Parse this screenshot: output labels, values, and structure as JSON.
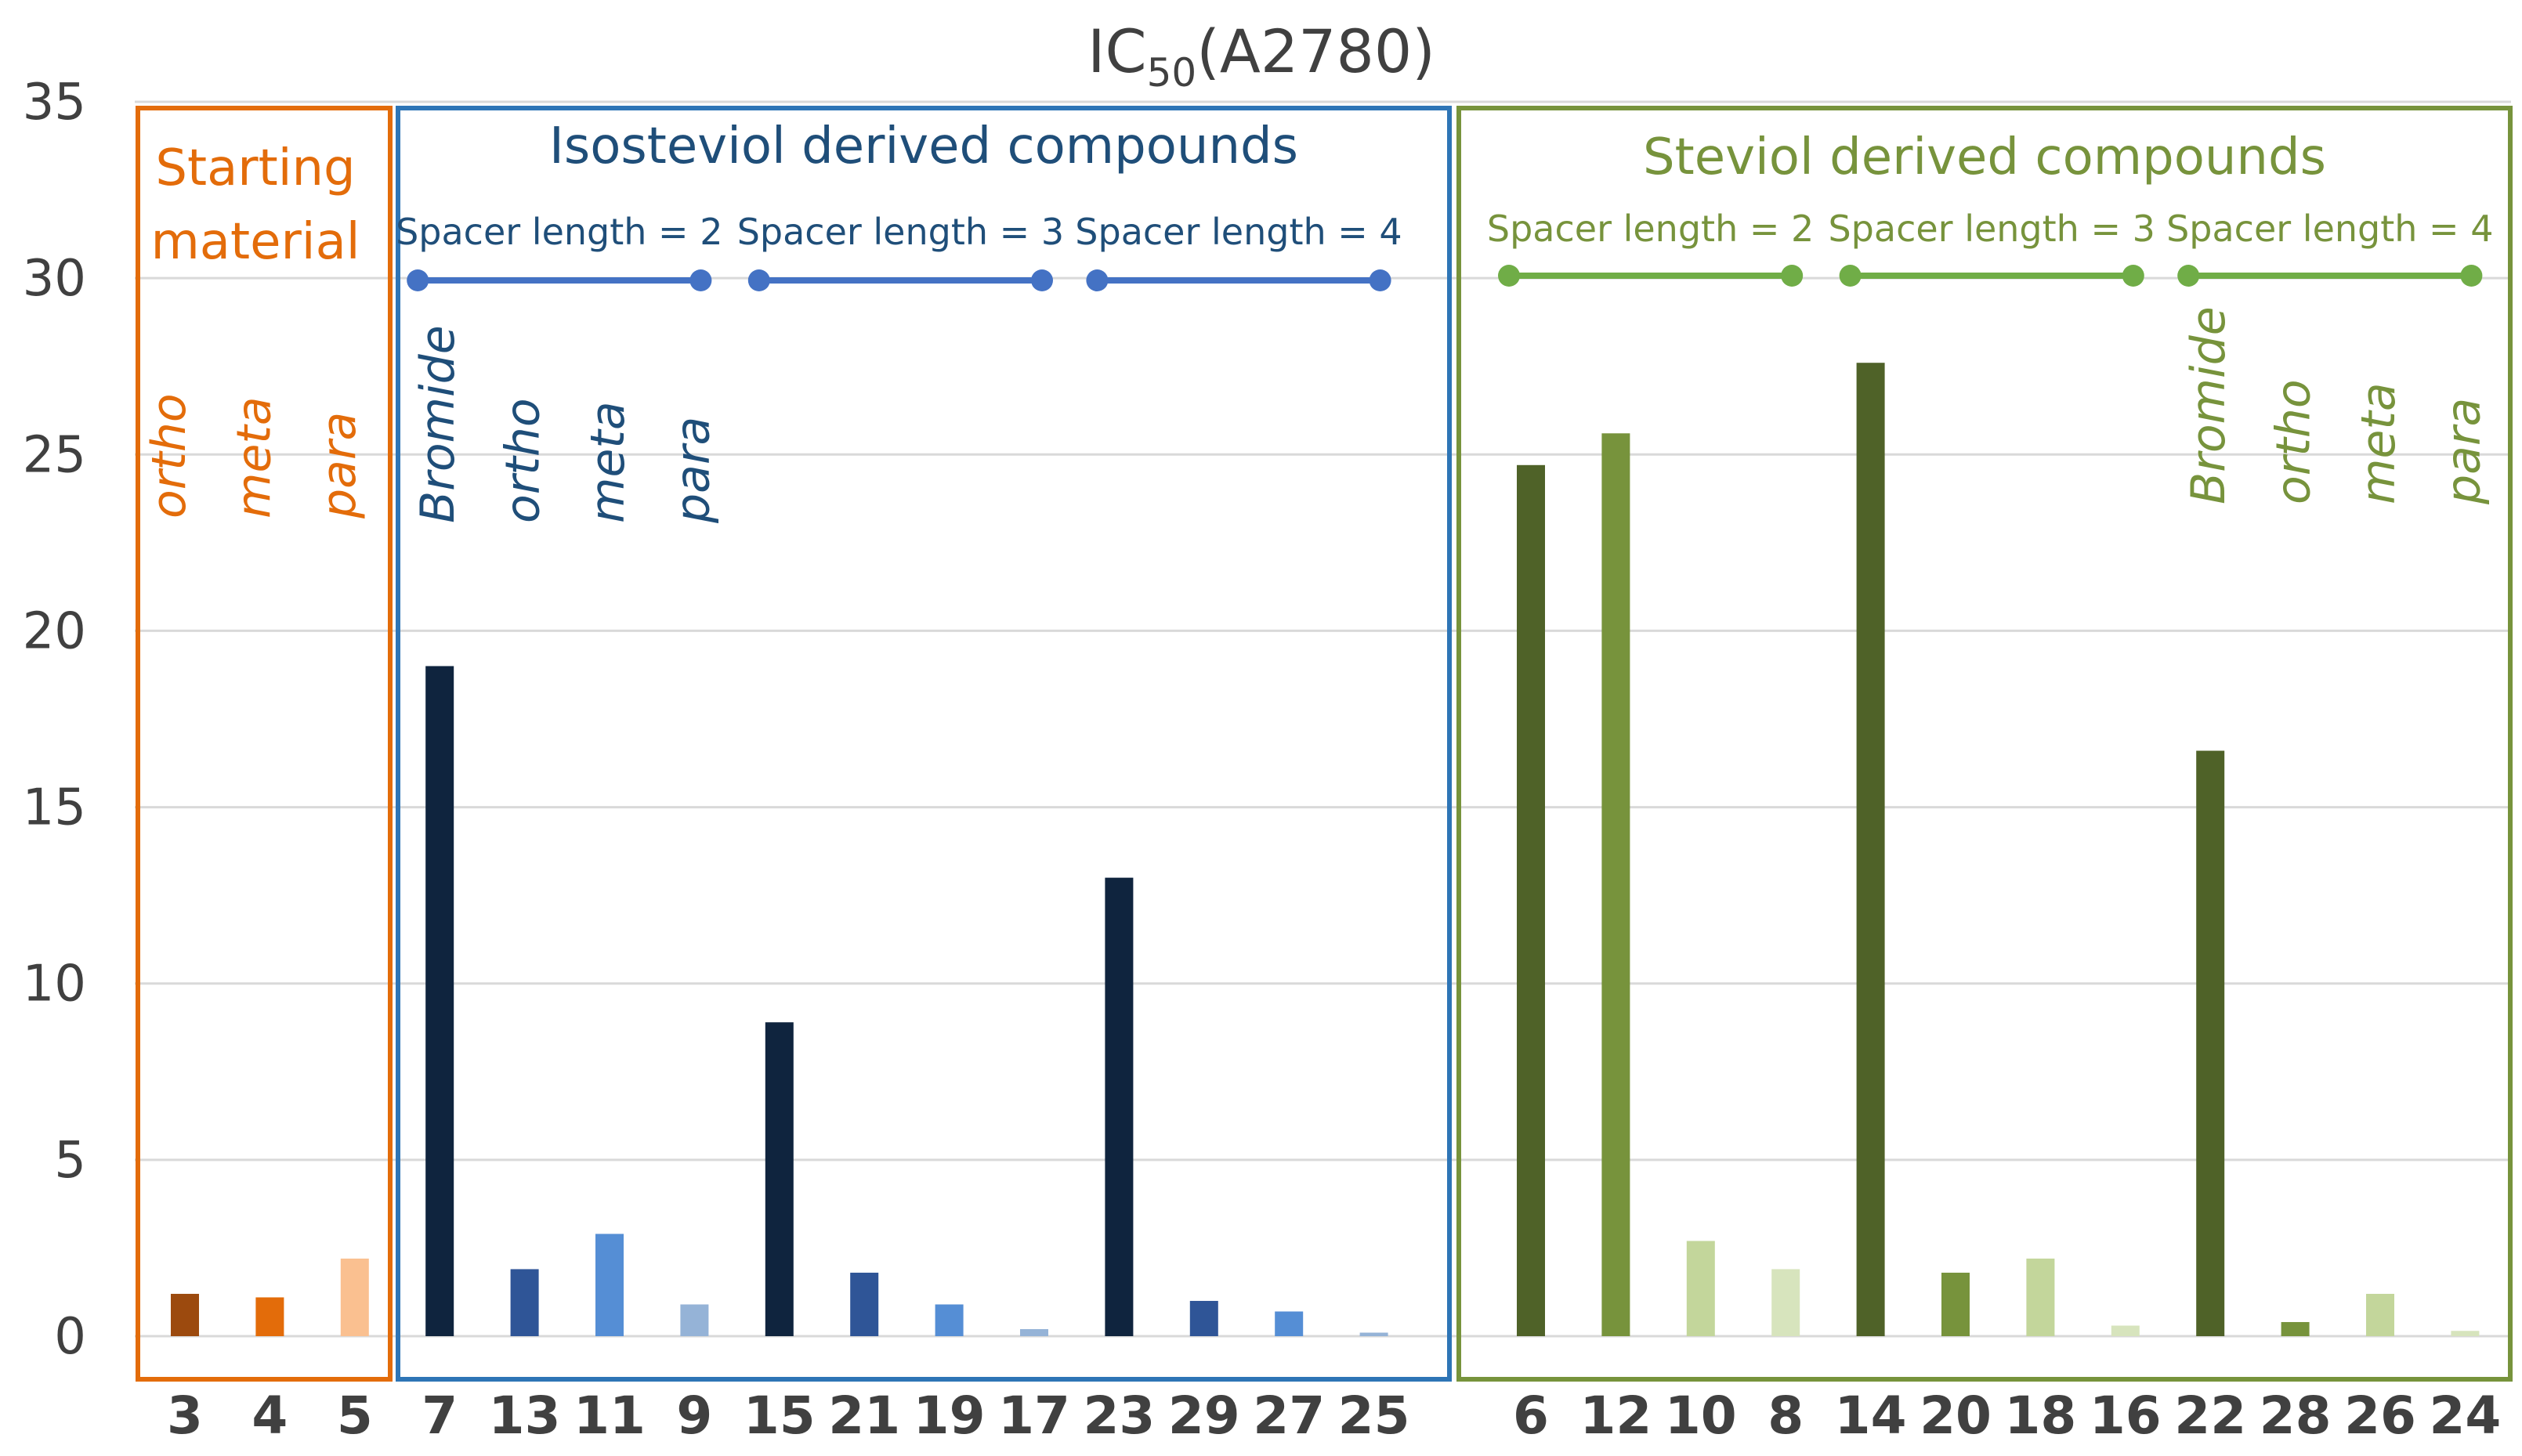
{
  "chart_data": {
    "type": "bar",
    "title": "IC50(A2780)",
    "title_main": "IC",
    "title_sub": "50",
    "title_rest": "(A2780)",
    "ylim": [
      0,
      35
    ],
    "yticks": [
      0,
      5,
      10,
      15,
      20,
      25,
      30,
      35
    ],
    "grid": true,
    "xlabel": "",
    "ylabel": "",
    "categories": [
      "3",
      "4",
      "5",
      "7",
      "13",
      "11",
      "9",
      "15",
      "21",
      "19",
      "17",
      "23",
      "29",
      "27",
      "25",
      "6",
      "12",
      "10",
      "8",
      "14",
      "20",
      "18",
      "16",
      "22",
      "28",
      "26",
      "24"
    ],
    "values": [
      1.2,
      1.1,
      2.2,
      19.0,
      1.9,
      2.9,
      0.9,
      8.9,
      1.8,
      0.9,
      0.2,
      13.0,
      1.0,
      0.7,
      0.1,
      24.7,
      25.6,
      2.7,
      1.9,
      27.6,
      1.8,
      2.2,
      0.3,
      16.6,
      0.4,
      1.2,
      0.15
    ],
    "colors": [
      "#9c4a0e",
      "#e36c0a",
      "#fac090",
      "#0f243e",
      "#2f5597",
      "#558ed5",
      "#95b3d7",
      "#0f243e",
      "#2f5597",
      "#558ed5",
      "#95b3d7",
      "#0f243e",
      "#2f5597",
      "#558ed5",
      "#95b3d7",
      "#4f6228",
      "#77933c",
      "#c3d69b",
      "#d7e4bd",
      "#4f6228",
      "#77933c",
      "#c3d69b",
      "#d7e4bd",
      "#4f6228",
      "#77933c",
      "#c3d69b",
      "#d7e4bd"
    ],
    "groups": [
      {
        "name": "starting",
        "lines": [
          "Starting",
          "material"
        ],
        "color": "#e36c0a",
        "from": 0,
        "to": 2,
        "substituents": [
          "ortho",
          "meta",
          "para"
        ]
      },
      {
        "name": "isosteviol",
        "lines": [
          "Isosteviol derived compounds"
        ],
        "color": "#1f4e79",
        "frame_color": "#2e75b6",
        "from": 3,
        "to": 14,
        "substituents": [
          "Bromide",
          "ortho",
          "meta",
          "para"
        ],
        "spacers": [
          "Spacer length = 2",
          "Spacer length = 3",
          "Spacer length = 4"
        ],
        "spacer_line_color": "#4472c4"
      },
      {
        "name": "steviol",
        "lines": [
          "Steviol derived compounds"
        ],
        "color": "#77933c",
        "from": 15,
        "to": 26,
        "substituents": [
          "Bromide",
          "ortho",
          "meta",
          "para"
        ],
        "spacers": [
          "Spacer length = 2",
          "Spacer length = 3",
          "Spacer length = 4"
        ],
        "spacer_line_color": "#70ad47"
      }
    ]
  }
}
